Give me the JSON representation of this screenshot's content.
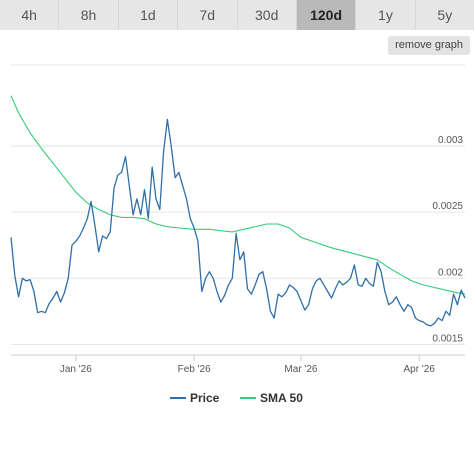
{
  "tabs": [
    {
      "label": "4h",
      "active": false
    },
    {
      "label": "8h",
      "active": false
    },
    {
      "label": "1d",
      "active": false
    },
    {
      "label": "7d",
      "active": false
    },
    {
      "label": "30d",
      "active": false
    },
    {
      "label": "120d",
      "active": true
    },
    {
      "label": "1y",
      "active": false
    },
    {
      "label": "5y",
      "active": false
    }
  ],
  "remove_graph_label": "remove graph",
  "colors": {
    "price": "#2f6fa8",
    "sma": "#33cc77",
    "grid": "#e6e6e6"
  },
  "chart_data": {
    "type": "line",
    "title": "",
    "xlabel": "",
    "ylabel": "",
    "x_range": [
      "2025-12-15",
      "2026-04-13"
    ],
    "ylim": [
      0.00142,
      0.00365
    ],
    "y_ticks": [
      {
        "value": 0.0015,
        "label": "0.0015"
      },
      {
        "value": 0.002,
        "label": "0.002"
      },
      {
        "value": 0.0025,
        "label": "0.0025"
      },
      {
        "value": 0.003,
        "label": "0.003"
      }
    ],
    "x_ticks": [
      {
        "date": "2026-01-01",
        "label": "Jan '26"
      },
      {
        "date": "2026-02-01",
        "label": "Feb '26"
      },
      {
        "date": "2026-03-01",
        "label": "Mar '26"
      },
      {
        "date": "2026-04-01",
        "label": "Apr '26"
      }
    ],
    "grid": true,
    "legend_position": "bottom-center",
    "series": [
      {
        "name": "Price",
        "color": "#2f6fa8",
        "points": [
          [
            "2025-12-15",
            0.00231
          ],
          [
            "2025-12-16",
            0.00202
          ],
          [
            "2025-12-17",
            0.00186
          ],
          [
            "2025-12-18",
            0.002
          ],
          [
            "2025-12-19",
            0.00198
          ],
          [
            "2025-12-20",
            0.00199
          ],
          [
            "2025-12-21",
            0.0019
          ],
          [
            "2025-12-22",
            0.00174
          ],
          [
            "2025-12-23",
            0.00175
          ],
          [
            "2025-12-24",
            0.00174
          ],
          [
            "2025-12-25",
            0.00181
          ],
          [
            "2025-12-26",
            0.00185
          ],
          [
            "2025-12-27",
            0.0019
          ],
          [
            "2025-12-28",
            0.00182
          ],
          [
            "2025-12-29",
            0.00189
          ],
          [
            "2025-12-30",
            0.002
          ],
          [
            "2025-12-31",
            0.00225
          ],
          [
            "2026-01-01",
            0.00228
          ],
          [
            "2026-01-02",
            0.00232
          ],
          [
            "2026-01-03",
            0.00238
          ],
          [
            "2026-01-04",
            0.00245
          ],
          [
            "2026-01-05",
            0.00258
          ],
          [
            "2026-01-06",
            0.0024
          ],
          [
            "2026-01-07",
            0.0022
          ],
          [
            "2026-01-08",
            0.00232
          ],
          [
            "2026-01-09",
            0.0023
          ],
          [
            "2026-01-10",
            0.00235
          ],
          [
            "2026-01-11",
            0.00268
          ],
          [
            "2026-01-12",
            0.00278
          ],
          [
            "2026-01-13",
            0.0028
          ],
          [
            "2026-01-14",
            0.00292
          ],
          [
            "2026-01-15",
            0.0027
          ],
          [
            "2026-01-16",
            0.00248
          ],
          [
            "2026-01-17",
            0.0026
          ],
          [
            "2026-01-18",
            0.00248
          ],
          [
            "2026-01-19",
            0.00267
          ],
          [
            "2026-01-20",
            0.00245
          ],
          [
            "2026-01-21",
            0.00284
          ],
          [
            "2026-01-22",
            0.0026
          ],
          [
            "2026-01-23",
            0.00252
          ],
          [
            "2026-01-24",
            0.00296
          ],
          [
            "2026-01-25",
            0.0032
          ],
          [
            "2026-01-26",
            0.003
          ],
          [
            "2026-01-27",
            0.00276
          ],
          [
            "2026-01-28",
            0.0028
          ],
          [
            "2026-01-29",
            0.0027
          ],
          [
            "2026-01-30",
            0.0026
          ],
          [
            "2026-01-31",
            0.00245
          ],
          [
            "2026-02-01",
            0.00238
          ],
          [
            "2026-02-02",
            0.00228
          ],
          [
            "2026-02-03",
            0.0019
          ],
          [
            "2026-02-04",
            0.002
          ],
          [
            "2026-02-05",
            0.00205
          ],
          [
            "2026-02-06",
            0.002
          ],
          [
            "2026-02-07",
            0.0019
          ],
          [
            "2026-02-08",
            0.00182
          ],
          [
            "2026-02-09",
            0.00187
          ],
          [
            "2026-02-10",
            0.00195
          ],
          [
            "2026-02-11",
            0.002
          ],
          [
            "2026-02-12",
            0.00234
          ],
          [
            "2026-02-13",
            0.00214
          ],
          [
            "2026-02-14",
            0.0022
          ],
          [
            "2026-02-15",
            0.00192
          ],
          [
            "2026-02-16",
            0.00188
          ],
          [
            "2026-02-17",
            0.00195
          ],
          [
            "2026-02-18",
            0.00203
          ],
          [
            "2026-02-19",
            0.00205
          ],
          [
            "2026-02-20",
            0.00192
          ],
          [
            "2026-02-21",
            0.00175
          ],
          [
            "2026-02-22",
            0.0017
          ],
          [
            "2026-02-23",
            0.00188
          ],
          [
            "2026-02-24",
            0.00186
          ],
          [
            "2026-02-25",
            0.00189
          ],
          [
            "2026-02-26",
            0.00195
          ],
          [
            "2026-02-27",
            0.00193
          ],
          [
            "2026-02-28",
            0.0019
          ],
          [
            "2026-03-01",
            0.00183
          ],
          [
            "2026-03-02",
            0.00176
          ],
          [
            "2026-03-03",
            0.0018
          ],
          [
            "2026-03-04",
            0.00192
          ],
          [
            "2026-03-05",
            0.00198
          ],
          [
            "2026-03-06",
            0.002
          ],
          [
            "2026-03-07",
            0.00195
          ],
          [
            "2026-03-08",
            0.0019
          ],
          [
            "2026-03-09",
            0.00185
          ],
          [
            "2026-03-10",
            0.00192
          ],
          [
            "2026-03-11",
            0.00198
          ],
          [
            "2026-03-12",
            0.00195
          ],
          [
            "2026-03-13",
            0.00197
          ],
          [
            "2026-03-14",
            0.002
          ],
          [
            "2026-03-15",
            0.0021
          ],
          [
            "2026-03-16",
            0.00195
          ],
          [
            "2026-03-17",
            0.00194
          ],
          [
            "2026-03-18",
            0.002
          ],
          [
            "2026-03-19",
            0.00196
          ],
          [
            "2026-03-20",
            0.00194
          ],
          [
            "2026-03-21",
            0.00212
          ],
          [
            "2026-03-22",
            0.00205
          ],
          [
            "2026-03-23",
            0.0019
          ],
          [
            "2026-03-24",
            0.0018
          ],
          [
            "2026-03-25",
            0.00182
          ],
          [
            "2026-03-26",
            0.00186
          ],
          [
            "2026-03-27",
            0.0018
          ],
          [
            "2026-03-28",
            0.00175
          ],
          [
            "2026-03-29",
            0.0018
          ],
          [
            "2026-03-30",
            0.00178
          ],
          [
            "2026-03-31",
            0.0017
          ],
          [
            "2026-04-01",
            0.00168
          ],
          [
            "2026-04-02",
            0.00167
          ],
          [
            "2026-04-03",
            0.00165
          ],
          [
            "2026-04-04",
            0.00164
          ],
          [
            "2026-04-05",
            0.00166
          ],
          [
            "2026-04-06",
            0.0017
          ],
          [
            "2026-04-07",
            0.00168
          ],
          [
            "2026-04-08",
            0.00175
          ],
          [
            "2026-04-09",
            0.00172
          ],
          [
            "2026-04-10",
            0.00188
          ],
          [
            "2026-04-11",
            0.0018
          ],
          [
            "2026-04-12",
            0.00191
          ],
          [
            "2026-04-13",
            0.00185
          ]
        ]
      },
      {
        "name": "SMA 50",
        "color": "#33cc77",
        "points": [
          [
            "2025-12-15",
            0.00338
          ],
          [
            "2025-12-17",
            0.00325
          ],
          [
            "2025-12-20",
            0.0031
          ],
          [
            "2025-12-23",
            0.00298
          ],
          [
            "2025-12-26",
            0.00287
          ],
          [
            "2025-12-29",
            0.00276
          ],
          [
            "2026-01-01",
            0.00265
          ],
          [
            "2026-01-04",
            0.00257
          ],
          [
            "2026-01-07",
            0.00252
          ],
          [
            "2026-01-10",
            0.00248
          ],
          [
            "2026-01-13",
            0.00246
          ],
          [
            "2026-01-16",
            0.00246
          ],
          [
            "2026-01-19",
            0.00245
          ],
          [
            "2026-01-22",
            0.00241
          ],
          [
            "2026-01-25",
            0.00239
          ],
          [
            "2026-01-28",
            0.00238
          ],
          [
            "2026-02-01",
            0.00237
          ],
          [
            "2026-02-05",
            0.00237
          ],
          [
            "2026-02-08",
            0.00236
          ],
          [
            "2026-02-11",
            0.00235
          ],
          [
            "2026-02-14",
            0.00237
          ],
          [
            "2026-02-17",
            0.00239
          ],
          [
            "2026-02-20",
            0.00241
          ],
          [
            "2026-02-23",
            0.00241
          ],
          [
            "2026-02-26",
            0.00238
          ],
          [
            "2026-03-01",
            0.00231
          ],
          [
            "2026-03-05",
            0.00227
          ],
          [
            "2026-03-09",
            0.00223
          ],
          [
            "2026-03-13",
            0.0022
          ],
          [
            "2026-03-17",
            0.00217
          ],
          [
            "2026-03-21",
            0.00214
          ],
          [
            "2026-03-24",
            0.00208
          ],
          [
            "2026-03-27",
            0.00203
          ],
          [
            "2026-03-30",
            0.00198
          ],
          [
            "2026-04-02",
            0.00195
          ],
          [
            "2026-04-05",
            0.00193
          ],
          [
            "2026-04-08",
            0.00191
          ],
          [
            "2026-04-11",
            0.00189
          ],
          [
            "2026-04-13",
            0.00188
          ]
        ]
      }
    ]
  }
}
